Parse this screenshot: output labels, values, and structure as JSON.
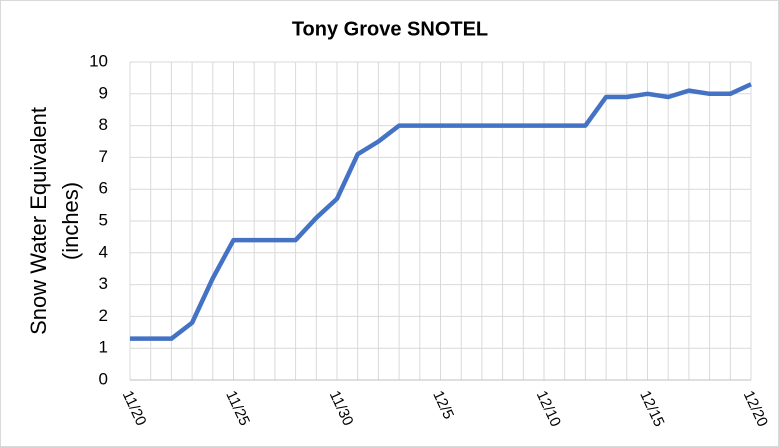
{
  "chart_data": {
    "type": "line",
    "title": "Tony Grove SNOTEL",
    "ylabel": [
      "Snow Water Equivalent",
      "(inches)"
    ],
    "categories": [
      "11/20",
      null,
      null,
      null,
      null,
      "11/25",
      null,
      null,
      null,
      null,
      "11/30",
      null,
      null,
      null,
      null,
      "12/5",
      null,
      null,
      null,
      null,
      "12/10",
      null,
      null,
      null,
      null,
      "12/15",
      null,
      null,
      null,
      null,
      "12/20"
    ],
    "series": [
      {
        "name": "Snow Water Equivalent",
        "color": "#4472c4",
        "values": [
          1.3,
          1.3,
          1.3,
          1.8,
          3.2,
          4.4,
          4.4,
          4.4,
          4.4,
          5.1,
          5.7,
          7.1,
          7.5,
          8.0,
          8.0,
          8.0,
          8.0,
          8.0,
          8.0,
          8.0,
          8.0,
          8.0,
          8.0,
          8.9,
          8.9,
          9.0,
          8.9,
          9.1,
          9.0,
          9.0,
          9.3
        ]
      }
    ],
    "ylim": [
      0,
      10
    ],
    "yticks": [
      0,
      1,
      2,
      3,
      4,
      5,
      6,
      7,
      8,
      9,
      10
    ],
    "grid": true
  }
}
